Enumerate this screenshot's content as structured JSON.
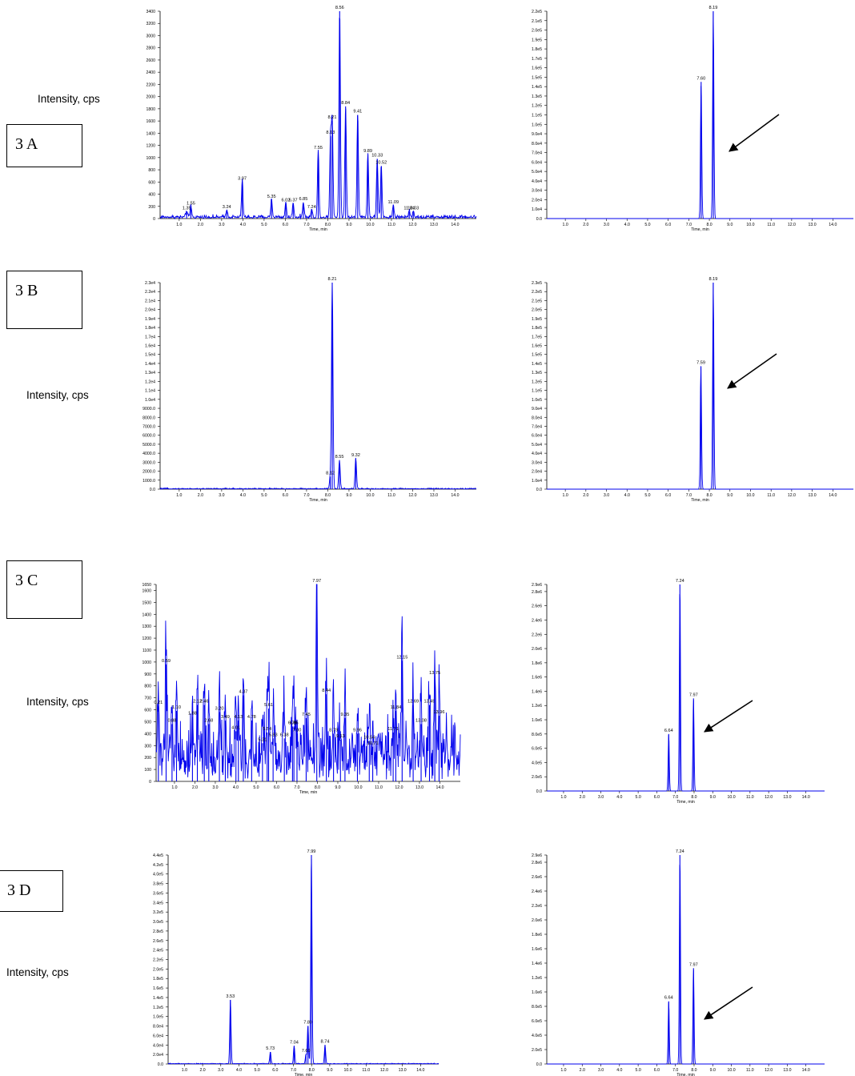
{
  "panels": [
    {
      "id": "3A",
      "label": "3 A",
      "ylabel": "Intensity, cps"
    },
    {
      "id": "3B",
      "label": "3 B",
      "ylabel": "Intensity, cps"
    },
    {
      "id": "3C",
      "label": "3 C",
      "ylabel": "Intensity, cps"
    },
    {
      "id": "3D",
      "label": "3 D",
      "ylabel": "Intensity, cps"
    }
  ],
  "arrow": {
    "color": "#000000"
  },
  "trace_color": "#0000ee",
  "chart_data": [
    {
      "id": "A-left",
      "type": "line",
      "xlabel": "Time, min",
      "xlim": [
        0.1,
        15.0
      ],
      "xticks": [
        "1.0",
        "2.0",
        "3.0",
        "4.0",
        "5.0",
        "6.0",
        "7.0",
        "8.0",
        "9.0",
        "10.0",
        "11.0",
        "12.0",
        "13.0",
        "14.0"
      ],
      "yticks": [
        "0",
        "200",
        "400",
        "600",
        "800",
        "1000",
        "1200",
        "1400",
        "1600",
        "1800",
        "2000",
        "2200",
        "2400",
        "2600",
        "2800",
        "3000",
        "3200",
        "3400"
      ],
      "ylim": [
        0,
        3400
      ],
      "noise": 60,
      "peaks": [
        {
          "label": "1.35",
          "x": 1.35,
          "y": 110
        },
        {
          "label": "1.55",
          "x": 1.55,
          "y": 190
        },
        {
          "label": "3.24",
          "x": 3.24,
          "y": 130
        },
        {
          "label": "3.97",
          "x": 3.97,
          "y": 600
        },
        {
          "label": "5.35",
          "x": 5.35,
          "y": 300
        },
        {
          "label": "6.02",
          "x": 6.02,
          "y": 240
        },
        {
          "label": "6.37",
          "x": 6.37,
          "y": 240
        },
        {
          "label": "6.85",
          "x": 6.85,
          "y": 260
        },
        {
          "label": "7.24",
          "x": 7.24,
          "y": 130
        },
        {
          "label": "7.55",
          "x": 7.55,
          "y": 1100
        },
        {
          "label": "8.13",
          "x": 8.13,
          "y": 1350
        },
        {
          "label": "8.21",
          "x": 8.21,
          "y": 1600
        },
        {
          "label": "8.56",
          "x": 8.56,
          "y": 3400
        },
        {
          "label": "8.84",
          "x": 8.84,
          "y": 1840
        },
        {
          "label": "9.41",
          "x": 9.41,
          "y": 1700
        },
        {
          "label": "9.89",
          "x": 9.89,
          "y": 1050
        },
        {
          "label": "10.33",
          "x": 10.33,
          "y": 980
        },
        {
          "label": "10.52",
          "x": 10.52,
          "y": 860
        },
        {
          "label": "11.09",
          "x": 11.09,
          "y": 210
        },
        {
          "label": "11.84",
          "x": 11.84,
          "y": 110
        },
        {
          "label": "12.03",
          "x": 12.03,
          "y": 110
        }
      ]
    },
    {
      "id": "A-right",
      "type": "line",
      "xlabel": "Time, min",
      "xlim": [
        0.1,
        15.0
      ],
      "xticks": [
        "1.0",
        "2.0",
        "3.0",
        "4.0",
        "5.0",
        "6.0",
        "7.0",
        "8.0",
        "9.0",
        "10.0",
        "11.0",
        "12.0",
        "13.0",
        "14.0"
      ],
      "yticks": [
        "0.0",
        "1.0e4",
        "2.0e4",
        "3.0e4",
        "4.0e4",
        "5.0e4",
        "6.0e4",
        "7.0e4",
        "8.0e4",
        "9.0e4",
        "1.0e5",
        "1.1e5",
        "1.2e5",
        "1.3e5",
        "1.4e5",
        "1.5e5",
        "1.6e5",
        "1.7e5",
        "1.8e5",
        "1.9e5",
        "2.0e5",
        "2.1e5",
        "2.2e5"
      ],
      "ylim": [
        0,
        220000
      ],
      "noise": 0,
      "peaks": [
        {
          "label": "7.60",
          "x": 7.6,
          "y": 145000
        },
        {
          "label": "8.19",
          "x": 8.19,
          "y": 220000
        }
      ]
    },
    {
      "id": "B-left",
      "type": "line",
      "xlabel": "Time, min",
      "xlim": [
        0.1,
        15.0
      ],
      "xticks": [
        "1.0",
        "2.0",
        "3.0",
        "4.0",
        "5.0",
        "6.0",
        "7.0",
        "8.0",
        "9.0",
        "10.0",
        "11.0",
        "12.0",
        "13.0",
        "14.0"
      ],
      "yticks": [
        "0.0",
        "1000.0",
        "2000.0",
        "3000.0",
        "4000.0",
        "5000.0",
        "6000.0",
        "7000.0",
        "8000.0",
        "9000.0",
        "1.0e4",
        "1.1e4",
        "1.2e4",
        "1.3e4",
        "1.4e4",
        "1.5e4",
        "1.6e4",
        "1.7e4",
        "1.8e4",
        "1.9e4",
        "2.0e4",
        "2.1e4",
        "2.2e4",
        "2.3e4"
      ],
      "ylim": [
        0,
        23000
      ],
      "noise": 120,
      "peaks": [
        {
          "label": "8.12",
          "x": 8.12,
          "y": 1400
        },
        {
          "label": "8.21",
          "x": 8.21,
          "y": 23000
        },
        {
          "label": "8.55",
          "x": 8.55,
          "y": 3200
        },
        {
          "label": "9.32",
          "x": 9.32,
          "y": 3400
        }
      ]
    },
    {
      "id": "B-right",
      "type": "line",
      "xlabel": "Time, min",
      "xlim": [
        0.1,
        15.0
      ],
      "xticks": [
        "1.0",
        "2.0",
        "3.0",
        "4.0",
        "5.0",
        "6.0",
        "7.0",
        "8.0",
        "9.0",
        "10.0",
        "11.0",
        "12.0",
        "13.0",
        "14.0"
      ],
      "yticks": [
        "0.0",
        "1.0e4",
        "2.0e4",
        "3.0e4",
        "4.0e4",
        "5.0e4",
        "6.0e4",
        "7.0e4",
        "8.0e4",
        "9.0e4",
        "1.0e5",
        "1.1e5",
        "1.2e5",
        "1.3e5",
        "1.4e5",
        "1.5e5",
        "1.6e5",
        "1.7e5",
        "1.8e5",
        "1.9e5",
        "2.0e5",
        "2.1e5",
        "2.2e5",
        "2.3e5"
      ],
      "ylim": [
        0,
        230000
      ],
      "noise": 0,
      "peaks": [
        {
          "label": "7.59",
          "x": 7.59,
          "y": 137000
        },
        {
          "label": "8.19",
          "x": 8.19,
          "y": 230000
        }
      ]
    },
    {
      "id": "C-left",
      "type": "line",
      "xlabel": "Time, min",
      "xlim": [
        0.1,
        15.0
      ],
      "xticks": [
        "1.0",
        "2.0",
        "3.0",
        "4.0",
        "5.0",
        "6.0",
        "7.0",
        "8.0",
        "9.0",
        "10.0",
        "11.0",
        "12.0",
        "13.0",
        "14.0"
      ],
      "yticks": [
        "0",
        "100",
        "200",
        "300",
        "400",
        "500",
        "600",
        "700",
        "800",
        "900",
        "1000",
        "1100",
        "1200",
        "1300",
        "1400",
        "1500",
        "1600",
        "1650"
      ],
      "ylim": [
        0,
        1650
      ],
      "noise": 520,
      "peaks": [
        {
          "label": "0.21",
          "x": 0.21,
          "y": 630
        },
        {
          "label": "0.59",
          "x": 0.59,
          "y": 980
        },
        {
          "label": "0.88",
          "x": 0.88,
          "y": 480
        },
        {
          "label": "1.10",
          "x": 1.1,
          "y": 590
        },
        {
          "label": "1.88",
          "x": 1.88,
          "y": 540
        },
        {
          "label": "2.12",
          "x": 2.12,
          "y": 640
        },
        {
          "label": "2.46",
          "x": 2.46,
          "y": 640
        },
        {
          "label": "2.68",
          "x": 2.68,
          "y": 480
        },
        {
          "label": "3.20",
          "x": 3.2,
          "y": 580
        },
        {
          "label": "3.49",
          "x": 3.49,
          "y": 510
        },
        {
          "label": "4.01",
          "x": 4.01,
          "y": 420
        },
        {
          "label": "4.13",
          "x": 4.13,
          "y": 510
        },
        {
          "label": "4.37",
          "x": 4.37,
          "y": 720
        },
        {
          "label": "4.78",
          "x": 4.78,
          "y": 510
        },
        {
          "label": "5.31",
          "x": 5.31,
          "y": 320
        },
        {
          "label": "5.54",
          "x": 5.54,
          "y": 410
        },
        {
          "label": "5.61",
          "x": 5.61,
          "y": 610
        },
        {
          "label": "5.83",
          "x": 5.83,
          "y": 360
        },
        {
          "label": "6.38",
          "x": 6.38,
          "y": 360
        },
        {
          "label": "6.78",
          "x": 6.78,
          "y": 460
        },
        {
          "label": "6.85",
          "x": 6.85,
          "y": 460
        },
        {
          "label": "7.00",
          "x": 7.0,
          "y": 400
        },
        {
          "label": "7.45",
          "x": 7.45,
          "y": 530
        },
        {
          "label": "7.97",
          "x": 7.97,
          "y": 1650
        },
        {
          "label": "8.44",
          "x": 8.44,
          "y": 730
        },
        {
          "label": "8.79",
          "x": 8.79,
          "y": 400
        },
        {
          "label": "9.13",
          "x": 9.13,
          "y": 350
        },
        {
          "label": "9.35",
          "x": 9.35,
          "y": 530
        },
        {
          "label": "9.96",
          "x": 9.96,
          "y": 400
        },
        {
          "label": "10.54",
          "x": 10.54,
          "y": 340
        },
        {
          "label": "10.71",
          "x": 10.71,
          "y": 290
        },
        {
          "label": "11.71",
          "x": 11.71,
          "y": 410
        },
        {
          "label": "11.84",
          "x": 11.84,
          "y": 590
        },
        {
          "label": "12.15",
          "x": 12.15,
          "y": 1010
        },
        {
          "label": "12.69",
          "x": 12.69,
          "y": 640
        },
        {
          "label": "13.08",
          "x": 13.08,
          "y": 480
        },
        {
          "label": "13.49",
          "x": 13.49,
          "y": 640
        },
        {
          "label": "13.75",
          "x": 13.75,
          "y": 880
        },
        {
          "label": "13.96",
          "x": 13.96,
          "y": 550
        }
      ]
    },
    {
      "id": "C-right",
      "type": "line",
      "xlabel": "Time, min",
      "xlim": [
        0.1,
        15.0
      ],
      "xticks": [
        "1.0",
        "2.0",
        "3.0",
        "4.0",
        "5.0",
        "6.0",
        "7.0",
        "8.0",
        "9.0",
        "10.0",
        "11.0",
        "12.0",
        "13.0",
        "14.0"
      ],
      "yticks": [
        "0.0",
        "2.0e5",
        "4.0e5",
        "6.0e5",
        "8.0e5",
        "1.0e6",
        "1.2e6",
        "1.4e6",
        "1.6e6",
        "1.8e6",
        "2.0e6",
        "2.2e6",
        "2.4e6",
        "2.6e6",
        "2.8e6",
        "2.9e6"
      ],
      "ylim": [
        0,
        2900000
      ],
      "noise": 0,
      "peaks": [
        {
          "label": "6.64",
          "x": 6.64,
          "y": 800000
        },
        {
          "label": "7.24",
          "x": 7.24,
          "y": 2900000
        },
        {
          "label": "7.97",
          "x": 7.97,
          "y": 1300000
        }
      ]
    },
    {
      "id": "D-left",
      "type": "line",
      "xlabel": "Time, min",
      "xlim": [
        0.1,
        15.0
      ],
      "xticks": [
        "1.0",
        "2.0",
        "3.0",
        "4.0",
        "5.0",
        "6.0",
        "7.0",
        "8.0",
        "9.0",
        "10.0",
        "11.0",
        "12.0",
        "13.0",
        "14.0"
      ],
      "yticks": [
        "0.0",
        "2.0e4",
        "4.0e4",
        "6.0e4",
        "8.0e4",
        "1.0e5",
        "1.2e5",
        "1.4e5",
        "1.6e5",
        "1.8e5",
        "2.0e5",
        "2.2e5",
        "2.4e5",
        "2.6e5",
        "2.8e5",
        "3.0e5",
        "3.2e5",
        "3.4e5",
        "3.6e5",
        "3.8e5",
        "4.0e5",
        "4.2e5",
        "4.4e5"
      ],
      "ylim": [
        0,
        440000
      ],
      "noise": 1500,
      "peaks": [
        {
          "label": "3.53",
          "x": 3.53,
          "y": 135000
        },
        {
          "label": "5.73",
          "x": 5.73,
          "y": 25000
        },
        {
          "label": "7.04",
          "x": 7.04,
          "y": 38000
        },
        {
          "label": "7.69",
          "x": 7.69,
          "y": 20000
        },
        {
          "label": "7.80",
          "x": 7.8,
          "y": 80000
        },
        {
          "label": "7.99",
          "x": 7.99,
          "y": 440000
        },
        {
          "label": "8.74",
          "x": 8.74,
          "y": 40000
        }
      ]
    },
    {
      "id": "D-right",
      "type": "line",
      "xlabel": "Time, min",
      "xlim": [
        0.1,
        15.0
      ],
      "xticks": [
        "1.0",
        "2.0",
        "3.0",
        "4.0",
        "5.0",
        "6.0",
        "7.0",
        "8.0",
        "9.0",
        "10.0",
        "11.0",
        "12.0",
        "13.0",
        "14.0"
      ],
      "yticks": [
        "0.0",
        "2.0e5",
        "4.0e5",
        "6.0e5",
        "8.0e5",
        "1.0e6",
        "1.2e6",
        "1.4e6",
        "1.6e6",
        "1.8e6",
        "2.0e6",
        "2.2e6",
        "2.4e6",
        "2.6e6",
        "2.8e6",
        "2.9e6"
      ],
      "ylim": [
        0,
        2900000
      ],
      "noise": 0,
      "peaks": [
        {
          "label": "6.64",
          "x": 6.64,
          "y": 870000
        },
        {
          "label": "7.24",
          "x": 7.24,
          "y": 2900000
        },
        {
          "label": "7.97",
          "x": 7.97,
          "y": 1330000
        }
      ]
    }
  ]
}
